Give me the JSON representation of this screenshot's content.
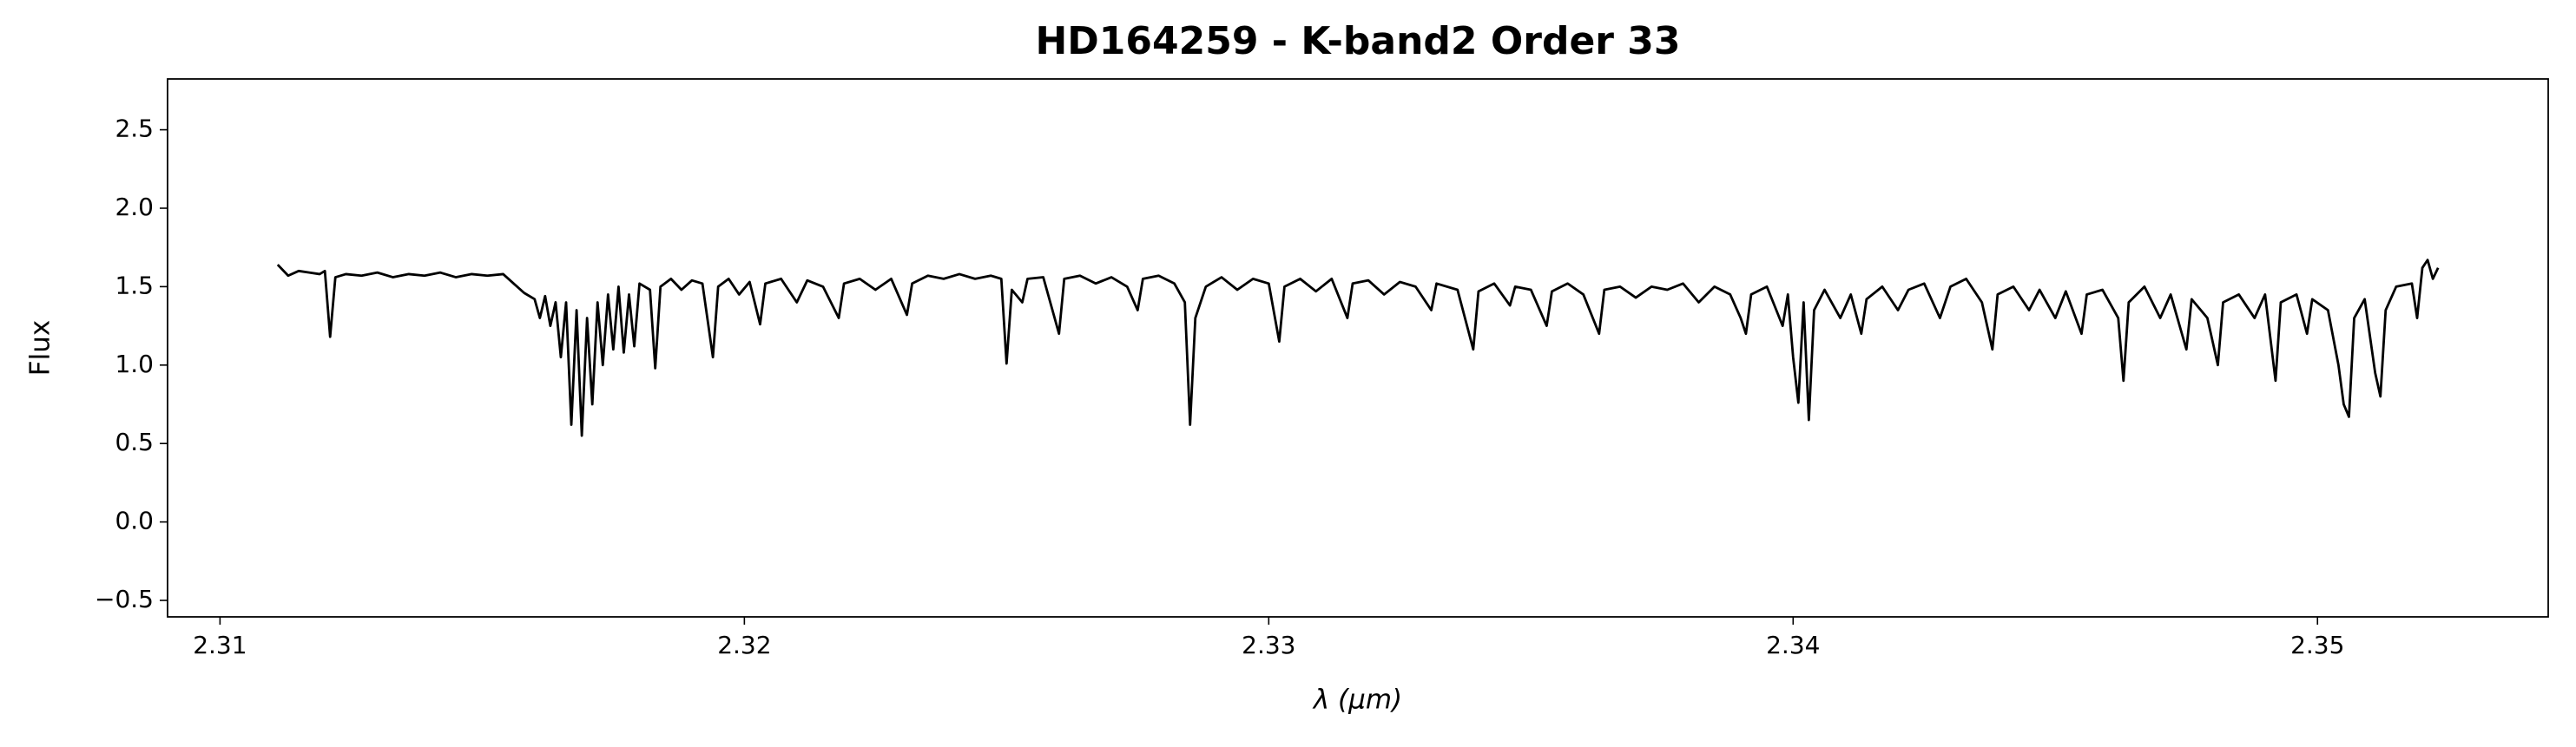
{
  "chart_data": {
    "type": "line",
    "title": "HD164259 - K-band2 Order 33",
    "x_label": "λ (μm)",
    "y_label": "Flux",
    "color": "#000000",
    "grid": false,
    "xlim": [
      2.309,
      2.3544
    ],
    "ylim": [
      -0.605,
      2.824
    ],
    "xticks": [
      2.31,
      2.32,
      2.33,
      2.34,
      2.35
    ],
    "yticks": [
      {
        "value": -0.5,
        "label": "−0.5"
      },
      {
        "value": 0.0,
        "label": "0.0"
      },
      0.5,
      {
        "value": 1.0,
        "label": "1.0"
      },
      1.5,
      {
        "value": 2.0,
        "label": "2.0"
      },
      2.5
    ],
    "x": [
      2.3111,
      2.3113,
      2.3115,
      2.3117,
      2.3119,
      2.312,
      2.3121,
      2.3122,
      2.3124,
      2.3127,
      2.313,
      2.3133,
      2.3136,
      2.3139,
      2.3142,
      2.3145,
      2.3148,
      2.3151,
      2.3154,
      2.3156,
      2.3158,
      2.316,
      2.3161,
      2.3162,
      2.3163,
      2.3164,
      2.3165,
      2.3166,
      2.3167,
      2.3168,
      2.3169,
      2.317,
      2.3171,
      2.3172,
      2.3173,
      2.3174,
      2.3175,
      2.3176,
      2.3177,
      2.3178,
      2.3179,
      2.318,
      2.3182,
      2.3183,
      2.3184,
      2.3186,
      2.3188,
      2.319,
      2.3192,
      2.3194,
      2.3195,
      2.3197,
      2.3199,
      2.3201,
      2.3203,
      2.3204,
      2.3207,
      2.321,
      2.3212,
      2.3215,
      2.3218,
      2.3219,
      2.3222,
      2.3225,
      2.3228,
      2.3231,
      2.3232,
      2.3235,
      2.3238,
      2.3241,
      2.3244,
      2.3247,
      2.3249,
      2.325,
      2.3251,
      2.3253,
      2.3254,
      2.3257,
      2.326,
      2.3261,
      2.3264,
      2.3267,
      2.327,
      2.3273,
      2.3275,
      2.3276,
      2.3279,
      2.3282,
      2.3284,
      2.3285,
      2.3286,
      2.3288,
      2.3291,
      2.3294,
      2.3297,
      2.33,
      2.3302,
      2.3303,
      2.3306,
      2.3309,
      2.3312,
      2.3315,
      2.3316,
      2.3319,
      2.3322,
      2.3325,
      2.3328,
      2.3331,
      2.3332,
      2.3336,
      2.3339,
      2.334,
      2.3343,
      2.3346,
      2.3347,
      2.335,
      2.3353,
      2.3354,
      2.3357,
      2.336,
      2.3363,
      2.3364,
      2.3367,
      2.337,
      2.3373,
      2.3376,
      2.3379,
      2.3382,
      2.3385,
      2.3388,
      2.339,
      2.3391,
      2.3392,
      2.3395,
      2.3398,
      2.3399,
      2.34,
      2.3401,
      2.3402,
      2.3403,
      2.3404,
      2.3406,
      2.3409,
      2.3411,
      2.3413,
      2.3414,
      2.3417,
      2.342,
      2.3422,
      2.3425,
      2.3428,
      2.343,
      2.3433,
      2.3436,
      2.3438,
      2.3439,
      2.3442,
      2.3445,
      2.3447,
      2.345,
      2.3452,
      2.3455,
      2.3456,
      2.3459,
      2.3462,
      2.3463,
      2.3464,
      2.3467,
      2.347,
      2.3472,
      2.3475,
      2.3476,
      2.3479,
      2.3481,
      2.3482,
      2.3485,
      2.3488,
      2.349,
      2.3492,
      2.3493,
      2.3496,
      2.3498,
      2.3499,
      2.3502,
      2.3504,
      2.3505,
      2.3506,
      2.3507,
      2.3509,
      2.3511,
      2.3512,
      2.3513,
      2.3515,
      2.3518,
      2.3519,
      2.352,
      2.3521,
      2.3522,
      2.3523
    ],
    "values": [
      1.64,
      1.57,
      1.6,
      1.59,
      1.58,
      1.6,
      1.18,
      1.56,
      1.58,
      1.57,
      1.59,
      1.56,
      1.58,
      1.57,
      1.59,
      1.56,
      1.58,
      1.57,
      1.58,
      1.52,
      1.46,
      1.42,
      1.3,
      1.44,
      1.25,
      1.4,
      1.05,
      1.4,
      0.62,
      1.35,
      0.55,
      1.3,
      0.75,
      1.4,
      1.0,
      1.45,
      1.1,
      1.5,
      1.08,
      1.45,
      1.12,
      1.52,
      1.48,
      0.98,
      1.5,
      1.55,
      1.48,
      1.54,
      1.52,
      1.05,
      1.5,
      1.55,
      1.45,
      1.53,
      1.26,
      1.52,
      1.55,
      1.4,
      1.54,
      1.5,
      1.3,
      1.52,
      1.55,
      1.48,
      1.55,
      1.32,
      1.52,
      1.57,
      1.55,
      1.58,
      1.55,
      1.57,
      1.55,
      1.01,
      1.48,
      1.4,
      1.55,
      1.56,
      1.2,
      1.55,
      1.57,
      1.52,
      1.56,
      1.5,
      1.35,
      1.55,
      1.57,
      1.52,
      1.4,
      0.62,
      1.3,
      1.5,
      1.56,
      1.48,
      1.55,
      1.52,
      1.15,
      1.5,
      1.55,
      1.47,
      1.55,
      1.3,
      1.52,
      1.54,
      1.45,
      1.53,
      1.5,
      1.35,
      1.52,
      1.48,
      1.1,
      1.47,
      1.52,
      1.38,
      1.5,
      1.48,
      1.25,
      1.47,
      1.52,
      1.45,
      1.2,
      1.48,
      1.5,
      1.43,
      1.5,
      1.48,
      1.52,
      1.4,
      1.5,
      1.45,
      1.3,
      1.2,
      1.45,
      1.5,
      1.25,
      1.45,
      1.05,
      0.76,
      1.4,
      0.65,
      1.35,
      1.48,
      1.3,
      1.45,
      1.2,
      1.42,
      1.5,
      1.35,
      1.48,
      1.52,
      1.3,
      1.5,
      1.55,
      1.4,
      1.1,
      1.45,
      1.5,
      1.35,
      1.48,
      1.3,
      1.47,
      1.2,
      1.45,
      1.48,
      1.3,
      0.9,
      1.4,
      1.5,
      1.3,
      1.45,
      1.1,
      1.42,
      1.3,
      1.0,
      1.4,
      1.45,
      1.3,
      1.45,
      0.9,
      1.4,
      1.45,
      1.2,
      1.42,
      1.35,
      1.0,
      0.75,
      0.67,
      1.3,
      1.42,
      0.95,
      0.8,
      1.35,
      1.5,
      1.52,
      1.3,
      1.62,
      1.67,
      1.55,
      1.62
    ]
  }
}
